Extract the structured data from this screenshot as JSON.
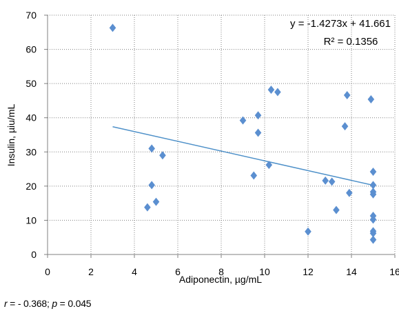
{
  "chart_data": {
    "type": "scatter",
    "xlabel": "Adiponectin, µg/mL",
    "ylabel": "Insulin, µiu/mL",
    "xlim": [
      0,
      16
    ],
    "ylim": [
      0,
      70
    ],
    "xticks": [
      0,
      2,
      4,
      6,
      8,
      10,
      12,
      14,
      16
    ],
    "yticks": [
      0,
      10,
      20,
      30,
      40,
      50,
      60,
      70
    ],
    "grid": true,
    "grid_style": "dotted",
    "series": [
      {
        "color": "#5B8FD0",
        "marker": "diamond",
        "points": [
          {
            "x": 3.0,
            "y": 66.3
          },
          {
            "x": 4.6,
            "y": 13.8
          },
          {
            "x": 4.8,
            "y": 20.3
          },
          {
            "x": 4.8,
            "y": 31.0
          },
          {
            "x": 5.0,
            "y": 15.4
          },
          {
            "x": 5.3,
            "y": 29.0
          },
          {
            "x": 9.0,
            "y": 39.2
          },
          {
            "x": 9.5,
            "y": 23.1
          },
          {
            "x": 9.7,
            "y": 40.7
          },
          {
            "x": 9.7,
            "y": 35.6
          },
          {
            "x": 10.2,
            "y": 26.2
          },
          {
            "x": 10.3,
            "y": 48.2
          },
          {
            "x": 10.6,
            "y": 47.5
          },
          {
            "x": 12.0,
            "y": 6.7
          },
          {
            "x": 12.8,
            "y": 21.6
          },
          {
            "x": 13.1,
            "y": 21.3
          },
          {
            "x": 13.3,
            "y": 13.0
          },
          {
            "x": 13.7,
            "y": 37.5
          },
          {
            "x": 13.8,
            "y": 46.6
          },
          {
            "x": 13.9,
            "y": 18.0
          },
          {
            "x": 14.9,
            "y": 45.4
          },
          {
            "x": 15.0,
            "y": 24.2
          },
          {
            "x": 15.0,
            "y": 20.3
          },
          {
            "x": 15.0,
            "y": 18.3
          },
          {
            "x": 15.0,
            "y": 17.6
          },
          {
            "x": 15.0,
            "y": 11.3
          },
          {
            "x": 15.0,
            "y": 10.2
          },
          {
            "x": 15.0,
            "y": 6.8
          },
          {
            "x": 15.0,
            "y": 6.2
          },
          {
            "x": 15.0,
            "y": 4.3
          }
        ]
      }
    ],
    "trendline": {
      "type": "linear",
      "slope": -1.4273,
      "intercept": 41.661,
      "x_start": 3.0,
      "x_end": 15.0,
      "color": "#4F91C9"
    },
    "annotations": {
      "equation": "y = -1.4273x + 41.661",
      "r_squared": "R² = 0.1356"
    }
  },
  "footnote": {
    "r_label": "r",
    "r_value": " = - 0.368; ",
    "p_label": "p",
    "p_value": " = 0.045"
  }
}
